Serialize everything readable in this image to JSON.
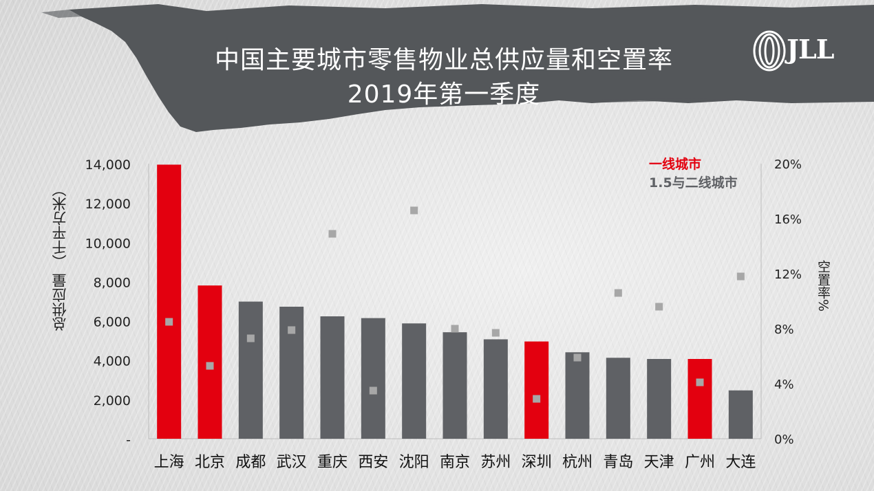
{
  "header": {
    "title_line1": "中国主要城市零售物业总供应量和空置率",
    "title_line2": "2019年第一季度",
    "logo_text": "JLL",
    "banner_color": "#54575a"
  },
  "legend": {
    "tier1_label": "一线城市",
    "tier2_label": "1.5与二线城市",
    "tier1_color": "#e3000f",
    "tier2_color": "#5f6165"
  },
  "chart_data": {
    "type": "bar",
    "categories": [
      "上海",
      "北京",
      "成都",
      "武汉",
      "重庆",
      "西安",
      "沈阳",
      "南京",
      "苏州",
      "深圳",
      "杭州",
      "青岛",
      "天津",
      "广州",
      "大连"
    ],
    "series": [
      {
        "name": "总供应量",
        "values": [
          13950,
          7800,
          6980,
          6720,
          6230,
          6140,
          5870,
          5420,
          5060,
          4950,
          4400,
          4120,
          4060,
          4060,
          2460
        ],
        "tier": [
          "一线城市",
          "一线城市",
          "1.5与二线城市",
          "1.5与二线城市",
          "1.5与二线城市",
          "1.5与二线城市",
          "1.5与二线城市",
          "1.5与二线城市",
          "1.5与二线城市",
          "一线城市",
          "1.5与二线城市",
          "1.5与二线城市",
          "1.5与二线城市",
          "一线城市",
          "1.5与二线城市"
        ]
      },
      {
        "name": "空置率",
        "values": [
          8.5,
          5.3,
          7.3,
          7.9,
          14.9,
          3.5,
          16.6,
          8.0,
          7.7,
          2.9,
          5.9,
          10.6,
          9.6,
          4.1,
          11.8
        ]
      }
    ],
    "ylabel": "总供应量 （千平方米）",
    "y2label": "空置率%",
    "ylim": [
      0,
      14000
    ],
    "y2lim": [
      0,
      20
    ],
    "yticks": [
      "-",
      "2,000",
      "4,000",
      "6,000",
      "8,000",
      "10,000",
      "12,000",
      "14,000"
    ],
    "y2ticks": [
      "0%",
      "4%",
      "8%",
      "12%",
      "16%",
      "20%"
    ],
    "legend_position": "top-right",
    "grid": false
  }
}
